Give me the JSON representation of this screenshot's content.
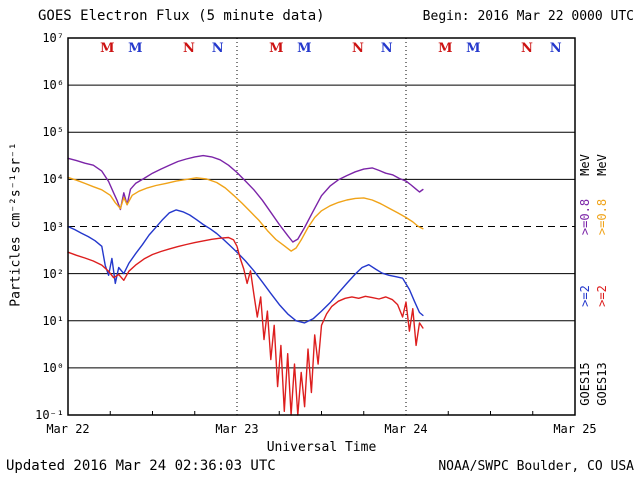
{
  "header": {
    "title": "GOES Electron Flux (5 minute data)",
    "begin": "Begin: 2016 Mar 22 0000 UTC"
  },
  "footer": {
    "updated": "Updated 2016 Mar 24 02:36:03 UTC",
    "credit": "NOAA/SWPC Boulder, CO USA"
  },
  "right_labels": [
    {
      "id": "goes15",
      "segments": [
        {
          "text": "GOES15",
          "color": "#000000"
        },
        {
          "text": ">=2",
          "color": "#2438cc"
        },
        {
          "text": ">=0.8",
          "color": "#7b24a8"
        },
        {
          "text": "MeV",
          "color": "#000000"
        }
      ]
    },
    {
      "id": "goes13",
      "segments": [
        {
          "text": "GOES13",
          "color": "#000000"
        },
        {
          "text": ">=2",
          "color": "#dd1e1e"
        },
        {
          "text": ">=0.8",
          "color": "#f0a318"
        },
        {
          "text": "MeV",
          "color": "#000000"
        }
      ]
    }
  ],
  "chart_data": {
    "type": "line",
    "title": "GOES Electron Flux (5 minute data)",
    "xlabel": "Universal Time",
    "ylabel": "Particles cm⁻²s⁻¹sr⁻¹",
    "x_axis": {
      "unit": "days",
      "start": "Mar 22",
      "end": "Mar 25",
      "span_days": 3
    },
    "x_ticks": [
      {
        "t": 0,
        "label": "Mar 22"
      },
      {
        "t": 1,
        "label": "Mar 23"
      },
      {
        "t": 2,
        "label": "Mar 24"
      },
      {
        "t": 3,
        "label": "Mar 25"
      }
    ],
    "y_scale": "log",
    "y_ticks": [
      {
        "exp": 7,
        "label": "10⁷"
      },
      {
        "exp": 6,
        "label": "10⁶"
      },
      {
        "exp": 5,
        "label": "10⁵"
      },
      {
        "exp": 4,
        "label": "10⁴"
      },
      {
        "exp": 3,
        "label": "10³"
      },
      {
        "exp": 2,
        "label": "10²"
      },
      {
        "exp": 1,
        "label": "10¹"
      },
      {
        "exp": 0,
        "label": "10⁰"
      },
      {
        "exp": -1,
        "label": "10⁻¹"
      }
    ],
    "ylim_exp": [
      -1,
      7
    ],
    "grid": "horizontal-solid-per-decade",
    "threshold": {
      "value": 1000,
      "exp": 3,
      "style": "dashed"
    },
    "day_boundaries_t": [
      1,
      2
    ],
    "markers": [
      {
        "label": "M",
        "color": "#cc1111",
        "t": 0.22
      },
      {
        "label": "M",
        "color": "#2438cc",
        "t": 0.385
      },
      {
        "label": "N",
        "color": "#cc1111",
        "t": 0.71
      },
      {
        "label": "N",
        "color": "#2438cc",
        "t": 0.88
      },
      {
        "label": "M",
        "color": "#cc1111",
        "t": 1.22
      },
      {
        "label": "M",
        "color": "#2438cc",
        "t": 1.385
      },
      {
        "label": "N",
        "color": "#cc1111",
        "t": 1.71
      },
      {
        "label": "N",
        "color": "#2438cc",
        "t": 1.88
      },
      {
        "label": "M",
        "color": "#cc1111",
        "t": 2.22
      },
      {
        "label": "M",
        "color": "#2438cc",
        "t": 2.385
      },
      {
        "label": "N",
        "color": "#cc1111",
        "t": 2.71
      },
      {
        "label": "N",
        "color": "#2438cc",
        "t": 2.88
      }
    ],
    "series": [
      {
        "id": "goes15-0p8mev",
        "name": "GOES15 >=0.8 MeV",
        "color": "#7b24a8",
        "points": [
          [
            0,
            28000
          ],
          [
            0.05,
            25000
          ],
          [
            0.1,
            22000
          ],
          [
            0.15,
            20000
          ],
          [
            0.2,
            15000
          ],
          [
            0.24,
            9000
          ],
          [
            0.27,
            5200
          ],
          [
            0.29,
            3600
          ],
          [
            0.31,
            2300
          ],
          [
            0.33,
            5200
          ],
          [
            0.35,
            2900
          ],
          [
            0.37,
            6200
          ],
          [
            0.4,
            8200
          ],
          [
            0.45,
            10500
          ],
          [
            0.5,
            13500
          ],
          [
            0.55,
            16500
          ],
          [
            0.6,
            20000
          ],
          [
            0.65,
            24000
          ],
          [
            0.7,
            27000
          ],
          [
            0.75,
            30000
          ],
          [
            0.8,
            32000
          ],
          [
            0.85,
            30000
          ],
          [
            0.9,
            26000
          ],
          [
            0.95,
            20000
          ],
          [
            1,
            14000
          ],
          [
            1.05,
            9200
          ],
          [
            1.1,
            6000
          ],
          [
            1.15,
            3600
          ],
          [
            1.2,
            2000
          ],
          [
            1.25,
            1100
          ],
          [
            1.3,
            640
          ],
          [
            1.33,
            470
          ],
          [
            1.36,
            540
          ],
          [
            1.4,
            950
          ],
          [
            1.45,
            2100
          ],
          [
            1.5,
            4500
          ],
          [
            1.55,
            7200
          ],
          [
            1.6,
            9800
          ],
          [
            1.65,
            12000
          ],
          [
            1.7,
            14500
          ],
          [
            1.75,
            16500
          ],
          [
            1.8,
            17500
          ],
          [
            1.84,
            15500
          ],
          [
            1.88,
            13500
          ],
          [
            1.92,
            12500
          ],
          [
            1.96,
            10500
          ],
          [
            2,
            9200
          ],
          [
            2.03,
            7600
          ],
          [
            2.06,
            6200
          ],
          [
            2.08,
            5400
          ],
          [
            2.1,
            6100
          ]
        ]
      },
      {
        "id": "goes13-0p8mev",
        "name": "GOES13 >=0.8 MeV",
        "color": "#f0a318",
        "points": [
          [
            0,
            11000
          ],
          [
            0.05,
            9600
          ],
          [
            0.1,
            8200
          ],
          [
            0.15,
            7000
          ],
          [
            0.2,
            6000
          ],
          [
            0.25,
            4600
          ],
          [
            0.28,
            3200
          ],
          [
            0.31,
            2400
          ],
          [
            0.33,
            4100
          ],
          [
            0.35,
            2900
          ],
          [
            0.38,
            4600
          ],
          [
            0.42,
            5600
          ],
          [
            0.47,
            6600
          ],
          [
            0.52,
            7400
          ],
          [
            0.58,
            8200
          ],
          [
            0.64,
            9200
          ],
          [
            0.7,
            10000
          ],
          [
            0.76,
            10800
          ],
          [
            0.82,
            10200
          ],
          [
            0.88,
            8600
          ],
          [
            0.93,
            6600
          ],
          [
            0.98,
            4600
          ],
          [
            1.03,
            3100
          ],
          [
            1.08,
            2050
          ],
          [
            1.13,
            1350
          ],
          [
            1.18,
            820
          ],
          [
            1.23,
            530
          ],
          [
            1.28,
            390
          ],
          [
            1.32,
            300
          ],
          [
            1.35,
            350
          ],
          [
            1.38,
            520
          ],
          [
            1.42,
            950
          ],
          [
            1.46,
            1550
          ],
          [
            1.5,
            2150
          ],
          [
            1.55,
            2750
          ],
          [
            1.6,
            3250
          ],
          [
            1.65,
            3650
          ],
          [
            1.7,
            3950
          ],
          [
            1.75,
            4050
          ],
          [
            1.8,
            3650
          ],
          [
            1.85,
            3050
          ],
          [
            1.9,
            2450
          ],
          [
            1.95,
            1950
          ],
          [
            2,
            1550
          ],
          [
            2.04,
            1250
          ],
          [
            2.07,
            1020
          ],
          [
            2.1,
            900
          ]
        ]
      },
      {
        "id": "goes15-2mev",
        "name": "GOES15 >=2 MeV",
        "color": "#2438cc",
        "points": [
          [
            0,
            1000
          ],
          [
            0.04,
            860
          ],
          [
            0.08,
            720
          ],
          [
            0.12,
            610
          ],
          [
            0.16,
            500
          ],
          [
            0.2,
            380
          ],
          [
            0.22,
            150
          ],
          [
            0.24,
            92
          ],
          [
            0.26,
            210
          ],
          [
            0.28,
            62
          ],
          [
            0.3,
            135
          ],
          [
            0.33,
            100
          ],
          [
            0.36,
            165
          ],
          [
            0.4,
            265
          ],
          [
            0.44,
            410
          ],
          [
            0.48,
            660
          ],
          [
            0.52,
            960
          ],
          [
            0.56,
            1400
          ],
          [
            0.6,
            1950
          ],
          [
            0.64,
            2250
          ],
          [
            0.68,
            2050
          ],
          [
            0.72,
            1750
          ],
          [
            0.76,
            1400
          ],
          [
            0.8,
            1100
          ],
          [
            0.84,
            900
          ],
          [
            0.88,
            710
          ],
          [
            0.92,
            530
          ],
          [
            0.96,
            390
          ],
          [
            1,
            285
          ],
          [
            1.05,
            185
          ],
          [
            1.1,
            115
          ],
          [
            1.15,
            66
          ],
          [
            1.2,
            38
          ],
          [
            1.25,
            22
          ],
          [
            1.3,
            14
          ],
          [
            1.35,
            10
          ],
          [
            1.4,
            9
          ],
          [
            1.45,
            11
          ],
          [
            1.5,
            16
          ],
          [
            1.55,
            24
          ],
          [
            1.6,
            39
          ],
          [
            1.65,
            62
          ],
          [
            1.7,
            98
          ],
          [
            1.74,
            135
          ],
          [
            1.78,
            155
          ],
          [
            1.82,
            125
          ],
          [
            1.86,
            102
          ],
          [
            1.9,
            92
          ],
          [
            1.94,
            86
          ],
          [
            1.98,
            80
          ],
          [
            2.02,
            46
          ],
          [
            2.05,
            26
          ],
          [
            2.08,
            15
          ],
          [
            2.1,
            13
          ]
        ]
      },
      {
        "id": "goes13-2mev",
        "name": "GOES13 >=2 MeV",
        "color": "#dd1e1e",
        "points": [
          [
            0,
            285
          ],
          [
            0.05,
            245
          ],
          [
            0.1,
            215
          ],
          [
            0.15,
            185
          ],
          [
            0.2,
            152
          ],
          [
            0.24,
            112
          ],
          [
            0.27,
            82
          ],
          [
            0.3,
            96
          ],
          [
            0.33,
            72
          ],
          [
            0.36,
            112
          ],
          [
            0.4,
            152
          ],
          [
            0.45,
            205
          ],
          [
            0.5,
            255
          ],
          [
            0.55,
            295
          ],
          [
            0.6,
            335
          ],
          [
            0.65,
            375
          ],
          [
            0.7,
            415
          ],
          [
            0.75,
            455
          ],
          [
            0.8,
            495
          ],
          [
            0.85,
            535
          ],
          [
            0.9,
            565
          ],
          [
            0.95,
            585
          ],
          [
            0.98,
            520
          ],
          [
            1,
            380
          ],
          [
            1.02,
            205
          ],
          [
            1.04,
            125
          ],
          [
            1.06,
            62
          ],
          [
            1.08,
            115
          ],
          [
            1.1,
            36
          ],
          [
            1.12,
            12
          ],
          [
            1.14,
            32
          ],
          [
            1.16,
            4
          ],
          [
            1.18,
            16
          ],
          [
            1.2,
            1.5
          ],
          [
            1.22,
            8
          ],
          [
            1.24,
            0.4
          ],
          [
            1.26,
            3
          ],
          [
            1.28,
            0.12
          ],
          [
            1.3,
            2
          ],
          [
            1.32,
            0.1
          ],
          [
            1.34,
            1.2
          ],
          [
            1.36,
            0.1
          ],
          [
            1.38,
            0.8
          ],
          [
            1.4,
            0.15
          ],
          [
            1.42,
            2.5
          ],
          [
            1.44,
            0.3
          ],
          [
            1.46,
            5
          ],
          [
            1.48,
            1.2
          ],
          [
            1.5,
            8
          ],
          [
            1.53,
            14
          ],
          [
            1.56,
            20
          ],
          [
            1.6,
            26
          ],
          [
            1.64,
            30
          ],
          [
            1.68,
            32
          ],
          [
            1.72,
            30
          ],
          [
            1.76,
            33
          ],
          [
            1.8,
            31
          ],
          [
            1.84,
            29
          ],
          [
            1.88,
            32
          ],
          [
            1.92,
            28
          ],
          [
            1.95,
            22
          ],
          [
            1.98,
            12
          ],
          [
            2,
            25
          ],
          [
            2.02,
            6
          ],
          [
            2.04,
            18
          ],
          [
            2.06,
            3
          ],
          [
            2.08,
            9
          ],
          [
            2.1,
            7
          ]
        ]
      }
    ]
  }
}
